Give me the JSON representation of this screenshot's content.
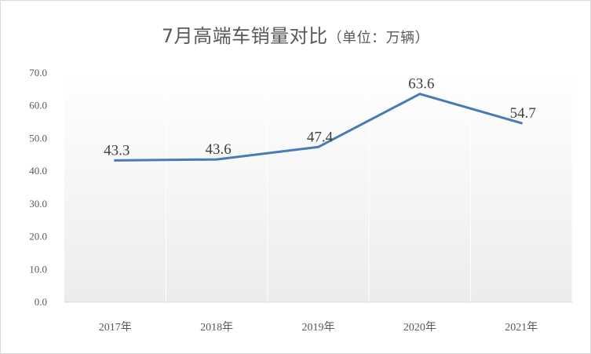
{
  "chart_data": {
    "type": "line",
    "title": "7月高端车销量对比",
    "title_unit": "（单位：万辆）",
    "categories": [
      "2017年",
      "2018年",
      "2019年",
      "2020年",
      "2021年"
    ],
    "series": [
      {
        "values": [
          43.3,
          43.6,
          47.4,
          63.6,
          54.7
        ],
        "color": "#4a7ab5"
      }
    ],
    "data_labels": [
      "43.3",
      "43.6",
      "47.4",
      "63.6",
      "54.7"
    ],
    "yticks": [
      "0.0",
      "10.0",
      "20.0",
      "30.0",
      "40.0",
      "50.0",
      "60.0",
      "70.0"
    ],
    "ylim": [
      0,
      70
    ],
    "grid": "vertical",
    "legend": "none"
  }
}
